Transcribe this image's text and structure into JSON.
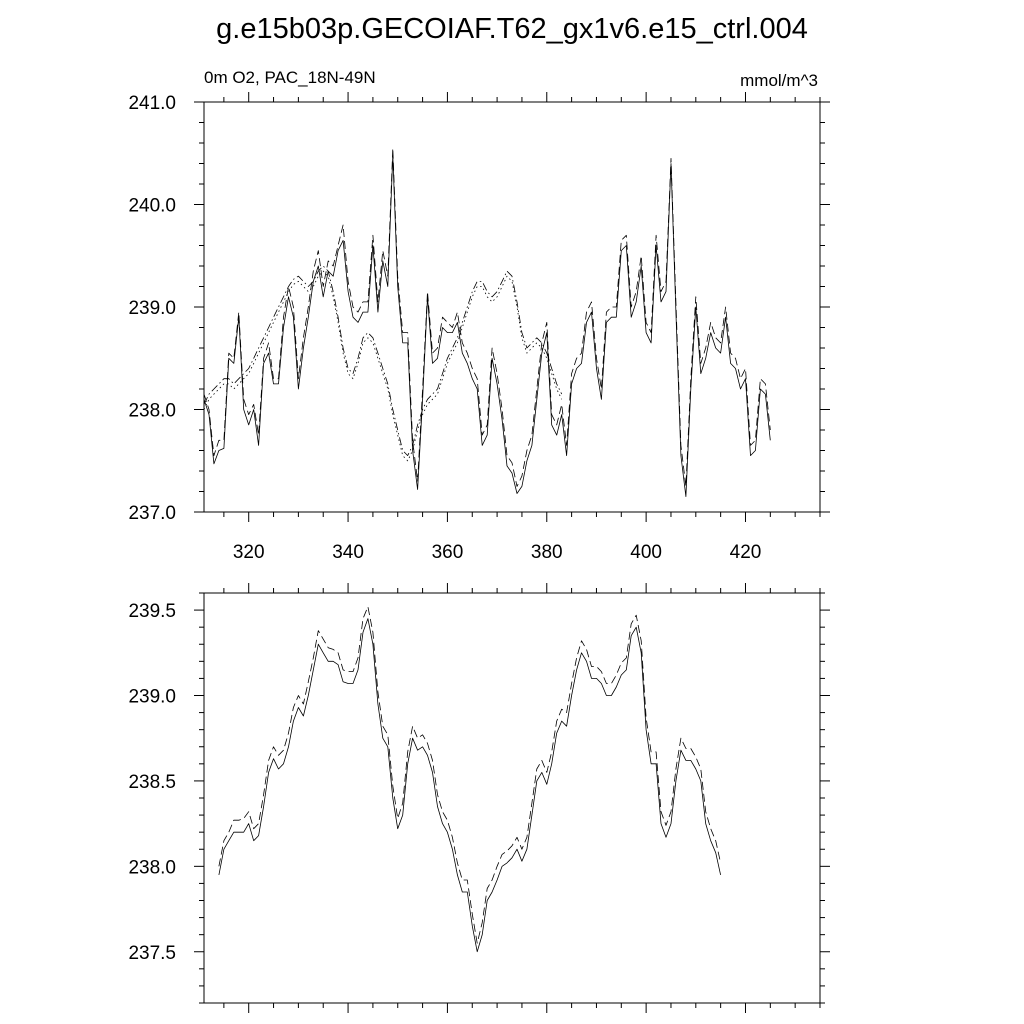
{
  "title": "g.e15b03p.GECOIAF.T62_gx1v6.e15_ctrl.004",
  "chart_data": [
    {
      "type": "line",
      "subtitle_left": "0m O2, PAC_18N-49N",
      "subtitle_right": "mmol/m^3",
      "xlim": [
        311,
        435
      ],
      "ylim": [
        237.0,
        241.0
      ],
      "xticks": [
        320,
        340,
        360,
        380,
        400,
        420
      ],
      "xtick_labels": [
        "320",
        "340",
        "360",
        "380",
        "400",
        "420"
      ],
      "yticks": [
        237.0,
        238.0,
        239.0,
        240.0,
        241.0
      ],
      "ytick_labels": [
        "237.0",
        "238.0",
        "239.0",
        "240.0",
        "241.0"
      ],
      "x_start": 311,
      "series": [
        {
          "style": "solid",
          "values": [
            238.1,
            237.95,
            237.47,
            237.6,
            237.62,
            238.5,
            238.45,
            238.9,
            238.0,
            237.85,
            238.0,
            237.65,
            238.45,
            238.55,
            238.25,
            238.25,
            238.8,
            239.1,
            238.9,
            238.2,
            238.6,
            238.9,
            239.25,
            239.4,
            239.1,
            239.35,
            239.3,
            239.55,
            239.65,
            239.15,
            238.9,
            238.85,
            238.95,
            238.95,
            239.6,
            238.95,
            239.45,
            239.2,
            240.48,
            239.2,
            238.65,
            238.65,
            237.6,
            237.22,
            238.1,
            239.1,
            238.45,
            238.5,
            238.8,
            238.75,
            238.75,
            238.85,
            238.55,
            238.45,
            238.3,
            238.2,
            237.65,
            237.75,
            238.5,
            238.25,
            237.9,
            237.45,
            237.38,
            237.18,
            237.25,
            237.5,
            237.65,
            238.1,
            238.55,
            238.75,
            237.85,
            237.75,
            237.95,
            237.55,
            238.25,
            238.4,
            238.45,
            238.85,
            238.95,
            238.4,
            238.1,
            238.85,
            238.9,
            238.9,
            239.55,
            239.6,
            238.9,
            239.05,
            239.4,
            238.75,
            238.65,
            239.6,
            239.05,
            239.15,
            240.4,
            238.95,
            237.55,
            237.15,
            238.2,
            239.0,
            238.35,
            238.5,
            238.75,
            238.6,
            238.55,
            238.9,
            238.45,
            238.4,
            238.2,
            238.3,
            237.55,
            237.6,
            238.2,
            238.15,
            237.7
          ]
        },
        {
          "style": "dash",
          "values": [
            238.15,
            238.0,
            237.55,
            237.7,
            237.7,
            238.55,
            238.5,
            238.95,
            238.1,
            237.95,
            238.05,
            237.75,
            238.5,
            238.65,
            238.3,
            238.3,
            238.9,
            239.2,
            239.0,
            238.3,
            238.7,
            239.0,
            239.35,
            239.55,
            239.2,
            239.45,
            239.4,
            239.6,
            239.8,
            239.25,
            239.0,
            238.95,
            239.05,
            239.05,
            239.7,
            239.05,
            239.55,
            239.3,
            240.55,
            239.3,
            238.75,
            238.75,
            237.7,
            237.3,
            238.2,
            239.15,
            238.55,
            238.6,
            238.9,
            238.85,
            238.8,
            238.95,
            238.65,
            238.55,
            238.4,
            238.3,
            237.75,
            237.85,
            238.6,
            238.35,
            238.0,
            237.55,
            237.48,
            237.25,
            237.35,
            237.6,
            237.75,
            238.2,
            238.65,
            238.85,
            237.95,
            237.85,
            238.05,
            237.65,
            238.35,
            238.5,
            238.55,
            238.95,
            239.05,
            238.5,
            238.2,
            238.95,
            239.0,
            239.0,
            239.65,
            239.7,
            239.0,
            239.15,
            239.5,
            238.85,
            238.75,
            239.7,
            239.15,
            239.25,
            240.45,
            239.05,
            237.65,
            237.25,
            238.3,
            239.1,
            238.45,
            238.6,
            238.85,
            238.7,
            238.65,
            239.0,
            238.55,
            238.5,
            238.3,
            238.4,
            237.65,
            237.7,
            238.3,
            238.25,
            237.8
          ]
        },
        {
          "style": "dot",
          "values": [
            238.0,
            238.1,
            238.15,
            238.2,
            238.25,
            238.25,
            238.2,
            238.25,
            238.3,
            238.35,
            238.45,
            238.55,
            238.65,
            238.75,
            238.85,
            238.95,
            239.05,
            239.15,
            239.22,
            239.25,
            239.2,
            239.15,
            239.2,
            239.3,
            239.35,
            239.3,
            239.1,
            238.85,
            238.55,
            238.35,
            238.3,
            238.45,
            238.65,
            238.7,
            238.65,
            238.5,
            238.35,
            238.2,
            237.95,
            237.75,
            237.55,
            237.5,
            237.6,
            237.8,
            237.95,
            238.05,
            238.1,
            238.15,
            238.3,
            238.45,
            238.55,
            238.65,
            238.8,
            238.95,
            239.1,
            239.2,
            239.2,
            239.1,
            239.05,
            239.1,
            239.2,
            239.3,
            239.25,
            239.0,
            238.7,
            238.55,
            238.6,
            238.65,
            238.6,
            238.5,
            238.35,
            238.2,
            238.1
          ]
        },
        {
          "style": "dashdot",
          "values": [
            238.05,
            238.15,
            238.2,
            238.25,
            238.3,
            238.3,
            238.25,
            238.3,
            238.35,
            238.4,
            238.5,
            238.6,
            238.7,
            238.8,
            238.9,
            239.0,
            239.1,
            239.2,
            239.27,
            239.3,
            239.25,
            239.2,
            239.25,
            239.35,
            239.4,
            239.35,
            239.15,
            238.9,
            238.6,
            238.4,
            238.35,
            238.5,
            238.7,
            238.75,
            238.7,
            238.55,
            238.4,
            238.25,
            238.0,
            237.8,
            237.6,
            237.55,
            237.65,
            237.85,
            238.0,
            238.1,
            238.15,
            238.2,
            238.35,
            238.5,
            238.6,
            238.7,
            238.85,
            239.0,
            239.15,
            239.25,
            239.25,
            239.15,
            239.1,
            239.15,
            239.25,
            239.35,
            239.3,
            239.05,
            238.75,
            238.6,
            238.65,
            238.7,
            238.65,
            238.55,
            238.4,
            238.25,
            238.15
          ]
        }
      ]
    },
    {
      "type": "line",
      "xlim": [
        311,
        435
      ],
      "ylim": [
        237.2,
        239.6
      ],
      "xticks": [
        320,
        340,
        360,
        380,
        400,
        420
      ],
      "yticks": [
        237.5,
        238.0,
        238.5,
        239.0,
        239.5
      ],
      "ytick_labels": [
        "237.5",
        "238.0",
        "238.5",
        "239.0",
        "239.5"
      ],
      "x_start": 314,
      "series": [
        {
          "style": "solid",
          "values": [
            237.95,
            238.1,
            238.15,
            238.2,
            238.2,
            238.2,
            238.25,
            238.15,
            238.18,
            238.35,
            238.55,
            238.63,
            238.57,
            238.6,
            238.7,
            238.85,
            238.93,
            238.88,
            239.0,
            239.15,
            239.3,
            239.25,
            239.2,
            239.2,
            239.18,
            239.08,
            239.07,
            239.07,
            239.15,
            239.37,
            239.45,
            239.3,
            238.95,
            238.75,
            238.7,
            238.4,
            238.22,
            238.3,
            238.6,
            238.75,
            238.68,
            238.7,
            238.65,
            238.55,
            238.35,
            238.25,
            238.2,
            238.1,
            237.95,
            237.85,
            237.85,
            237.65,
            237.5,
            237.6,
            237.8,
            237.85,
            237.92,
            238.0,
            238.02,
            238.05,
            238.1,
            238.03,
            238.1,
            238.3,
            238.5,
            238.55,
            238.48,
            238.6,
            238.78,
            238.85,
            238.82,
            239.0,
            239.15,
            239.25,
            239.2,
            239.1,
            239.1,
            239.07,
            239.0,
            239.0,
            239.05,
            239.12,
            239.15,
            239.35,
            239.4,
            239.25,
            238.8,
            238.6,
            238.6,
            238.25,
            238.17,
            238.25,
            238.5,
            238.68,
            238.62,
            238.62,
            238.57,
            238.5,
            238.25,
            238.15,
            238.08,
            237.95
          ]
        },
        {
          "style": "dash",
          "values": [
            238.0,
            238.15,
            238.2,
            238.27,
            238.27,
            238.28,
            238.32,
            238.22,
            238.25,
            238.42,
            238.62,
            238.7,
            238.65,
            238.68,
            238.78,
            238.93,
            239.0,
            238.95,
            239.08,
            239.22,
            239.38,
            239.33,
            239.28,
            239.27,
            239.25,
            239.15,
            239.14,
            239.14,
            239.22,
            239.45,
            239.52,
            239.37,
            239.02,
            238.82,
            238.77,
            238.47,
            238.28,
            238.37,
            238.67,
            238.82,
            238.75,
            238.77,
            238.72,
            238.62,
            238.42,
            238.32,
            238.27,
            238.17,
            238.02,
            237.92,
            237.92,
            237.72,
            237.55,
            237.67,
            237.87,
            237.92,
            238.0,
            238.07,
            238.09,
            238.12,
            238.17,
            238.1,
            238.17,
            238.37,
            238.57,
            238.62,
            238.55,
            238.67,
            238.85,
            238.92,
            238.9,
            239.07,
            239.22,
            239.32,
            239.27,
            239.17,
            239.17,
            239.14,
            239.07,
            239.07,
            239.12,
            239.19,
            239.22,
            239.42,
            239.47,
            239.32,
            238.87,
            238.67,
            238.67,
            238.32,
            238.24,
            238.32,
            238.57,
            238.75,
            238.69,
            238.69,
            238.64,
            238.57,
            238.32,
            238.22,
            238.15,
            238.02
          ]
        }
      ]
    }
  ]
}
